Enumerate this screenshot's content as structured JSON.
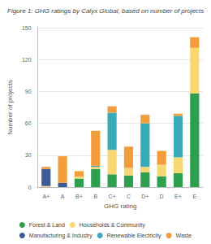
{
  "chart_data": {
    "type": "bar",
    "title": "Figure 1: GHG ratings by Calyx Global, based on number of projects",
    "x_label": "GHG rating",
    "y_label": "Number of projects",
    "categories": [
      "A+",
      "A",
      "B+",
      "B",
      "C+",
      "C",
      "D+",
      "D",
      "E+",
      "E"
    ],
    "series": [
      {
        "name": "Forest & Land",
        "color": "#2e9e4f",
        "values": [
          0,
          0,
          8,
          17,
          12,
          11,
          14,
          10,
          13,
          88
        ]
      },
      {
        "name": "Households & Community",
        "color": "#f7d774",
        "values": [
          1,
          0,
          2,
          2,
          23,
          7,
          5,
          11,
          15,
          43
        ]
      },
      {
        "name": "Manufacturing & Industry",
        "color": "#3d5a99",
        "values": [
          16,
          4,
          0,
          0,
          0,
          0,
          0,
          0,
          0,
          0
        ]
      },
      {
        "name": "Renewable Electricity",
        "color": "#3aa9b8",
        "values": [
          0,
          0,
          0,
          1,
          35,
          0,
          41,
          0,
          39,
          0
        ]
      },
      {
        "name": "Waste",
        "color": "#f39c3b",
        "values": [
          2,
          25,
          5,
          33,
          6,
          20,
          8,
          13,
          2,
          10
        ]
      }
    ],
    "ylim": [
      0,
      150
    ],
    "yticks": [
      0,
      30,
      60,
      90,
      120,
      150
    ],
    "stacked": true,
    "grid": true,
    "legend": "bottom"
  }
}
